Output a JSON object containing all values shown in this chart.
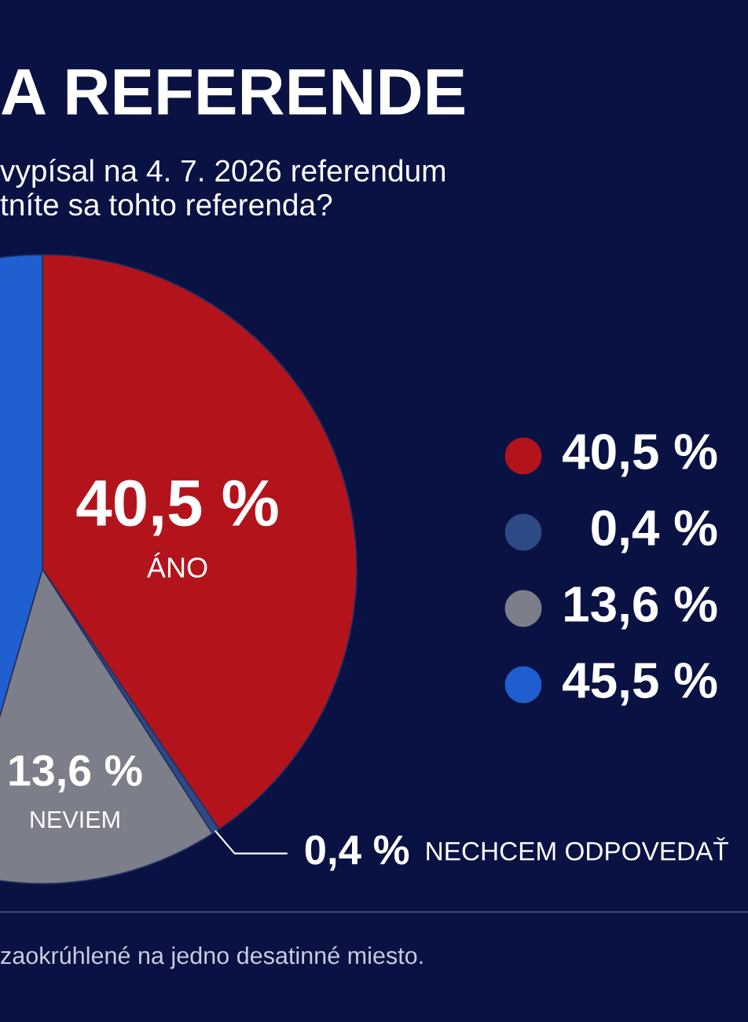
{
  "chart_data": {
    "type": "pie",
    "title": "A REFERENDE",
    "subtitle": "vypísal na 4. 7. 2026 referendum\ntníte sa tohto referenda?",
    "categories": [
      "ÁNO",
      "NECHCEM ODPOVEDAŤ",
      "NEVIEM",
      null
    ],
    "values": [
      40.5,
      0.4,
      13.6,
      45.5
    ],
    "value_labels": [
      "40,5 %",
      "0,4 %",
      "13,6 %",
      null
    ],
    "colors": [
      "#b3141c",
      "#2e4a86",
      "#7c7e89",
      "#1f5fd0"
    ],
    "annotations": [
      "40,5 %",
      "0,4 %",
      "13,6 %",
      "45,5 %",
      "zaokrúhlené na jedno desatinné miesto."
    ]
  }
}
